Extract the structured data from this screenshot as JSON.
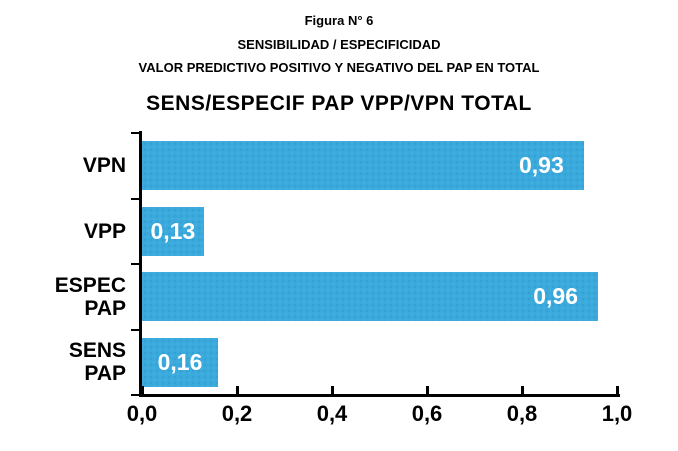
{
  "header": {
    "line1": "Figura N° 6",
    "line2": "SENSIBILIDAD / ESPECIFICIDAD",
    "line3": "VALOR PREDICTIVO POSITIVO Y NEGATIVO DEL PAP EN TOTAL"
  },
  "chart_data": {
    "type": "bar",
    "orientation": "horizontal",
    "title": "SENS/ESPECIF PAP VPP/VPN TOTAL",
    "categories": [
      "VPN",
      "VPP",
      "ESPEC PAP",
      "SENS PAP"
    ],
    "values": [
      0.93,
      0.13,
      0.96,
      0.16
    ],
    "value_labels": [
      "0,93",
      "0,13",
      "0,96",
      "0,16"
    ],
    "x_tick_labels": [
      "0,0",
      "0,2",
      "0,4",
      "0,6",
      "0,8",
      "1,0"
    ],
    "xlim": [
      0,
      1
    ],
    "grid": "off",
    "legend": "none",
    "bar_color": "#3AA9DC",
    "value_label_color": "#FFFFFF",
    "axis_color": "#000000"
  }
}
